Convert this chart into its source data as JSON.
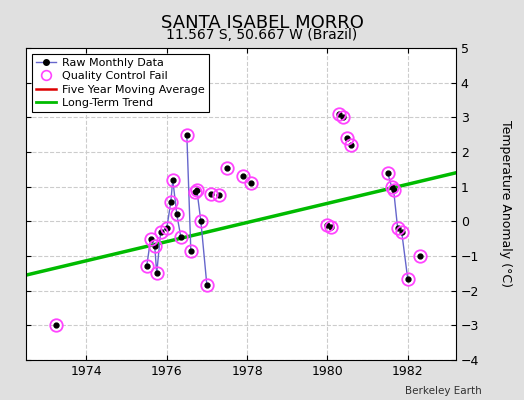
{
  "title": "SANTA ISABEL MORRO",
  "subtitle": "11.567 S, 50.667 W (Brazil)",
  "ylabel": "Temperature Anomaly (°C)",
  "credit": "Berkeley Earth",
  "xlim": [
    1972.5,
    1983.2
  ],
  "ylim": [
    -4,
    5
  ],
  "yticks": [
    -4,
    -3,
    -2,
    -1,
    0,
    1,
    2,
    3,
    4,
    5
  ],
  "xticks": [
    1974,
    1976,
    1978,
    1980,
    1982
  ],
  "fig_bg_color": "#e0e0e0",
  "plot_bg_color": "#ffffff",
  "grid_color": "#cccccc",
  "raw_line_color": "#6666cc",
  "raw_dot_color": "#000000",
  "qc_color": "#ff44ff",
  "trend_color": "#00bb00",
  "ma_color": "#dd0000",
  "connected_segments": [
    [
      [
        1975.5,
        -1.3
      ],
      [
        1975.6,
        -0.5
      ],
      [
        1975.7,
        -0.7
      ],
      [
        1975.75,
        -1.5
      ],
      [
        1975.85,
        -0.3
      ],
      [
        1976.0,
        -0.2
      ],
      [
        1976.1,
        0.55
      ],
      [
        1976.15,
        1.2
      ],
      [
        1976.25,
        0.2
      ],
      [
        1976.35,
        -0.45
      ]
    ],
    [
      [
        1976.5,
        2.5
      ],
      [
        1976.6,
        -0.85
      ]
    ],
    [
      [
        1976.7,
        0.85
      ],
      [
        1976.75,
        0.9
      ],
      [
        1976.85,
        0.0
      ],
      [
        1977.0,
        -1.85
      ]
    ],
    [
      [
        1980.3,
        3.1
      ],
      [
        1980.4,
        3.0
      ]
    ],
    [
      [
        1981.5,
        1.4
      ],
      [
        1981.6,
        1.0
      ],
      [
        1981.65,
        0.9
      ],
      [
        1981.75,
        -0.2
      ],
      [
        1981.85,
        -0.3
      ],
      [
        1982.0,
        -1.65
      ]
    ]
  ],
  "isolated_dots": [
    [
      1973.25,
      -3.0
    ],
    [
      1977.1,
      0.8
    ],
    [
      1977.3,
      0.75
    ],
    [
      1977.5,
      1.55
    ],
    [
      1977.9,
      1.3
    ],
    [
      1978.1,
      1.1
    ],
    [
      1980.0,
      -0.1
    ],
    [
      1980.1,
      -0.15
    ],
    [
      1980.5,
      2.4
    ],
    [
      1980.6,
      2.2
    ],
    [
      1982.3,
      -1.0
    ]
  ],
  "qc_fail_points": [
    [
      1973.25,
      -3.0
    ],
    [
      1975.5,
      -1.3
    ],
    [
      1975.6,
      -0.5
    ],
    [
      1975.7,
      -0.7
    ],
    [
      1975.75,
      -1.5
    ],
    [
      1975.85,
      -0.3
    ],
    [
      1976.0,
      -0.2
    ],
    [
      1976.1,
      0.55
    ],
    [
      1976.15,
      1.2
    ],
    [
      1976.25,
      0.2
    ],
    [
      1976.35,
      -0.45
    ],
    [
      1976.5,
      2.5
    ],
    [
      1976.6,
      -0.85
    ],
    [
      1976.7,
      0.85
    ],
    [
      1976.75,
      0.9
    ],
    [
      1976.85,
      0.0
    ],
    [
      1977.0,
      -1.85
    ],
    [
      1977.1,
      0.8
    ],
    [
      1977.3,
      0.75
    ],
    [
      1977.5,
      1.55
    ],
    [
      1977.9,
      1.3
    ],
    [
      1978.1,
      1.1
    ],
    [
      1980.0,
      -0.1
    ],
    [
      1980.1,
      -0.15
    ],
    [
      1980.3,
      3.1
    ],
    [
      1980.4,
      3.0
    ],
    [
      1980.5,
      2.4
    ],
    [
      1980.6,
      2.2
    ],
    [
      1981.5,
      1.4
    ],
    [
      1981.6,
      1.0
    ],
    [
      1981.65,
      0.9
    ],
    [
      1981.75,
      -0.2
    ],
    [
      1981.85,
      -0.3
    ],
    [
      1982.0,
      -1.65
    ],
    [
      1982.3,
      -1.0
    ]
  ],
  "trend_line": [
    [
      1972.5,
      -1.55
    ],
    [
      1983.2,
      1.4
    ]
  ],
  "title_fontsize": 13,
  "subtitle_fontsize": 10,
  "tick_fontsize": 9,
  "ylabel_fontsize": 9
}
